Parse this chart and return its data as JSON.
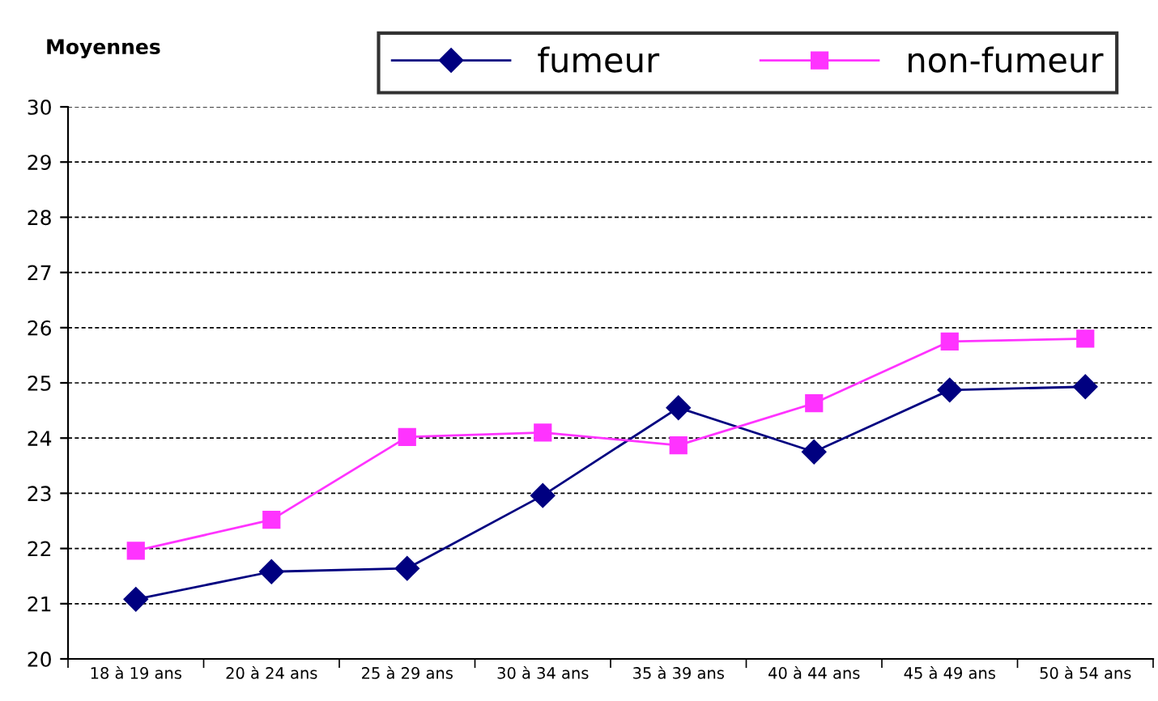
{
  "chart_data": {
    "type": "line",
    "ylabel": "Moyennes",
    "categories": [
      "18 à 19 ans",
      "20 à 24 ans",
      "25 à 29 ans",
      "30 à 34 ans",
      "35 à 39 ans",
      "40 à 44 ans",
      "45 à 49 ans",
      "50 à 54 ans"
    ],
    "series": [
      {
        "name": "fumeur",
        "color": "#000080",
        "marker": "diamond",
        "values": [
          21.08,
          21.58,
          21.64,
          22.96,
          24.55,
          23.75,
          24.87,
          24.93
        ]
      },
      {
        "name": "non-fumeur",
        "color": "#ff33ff",
        "marker": "square",
        "values": [
          21.96,
          22.52,
          24.02,
          24.1,
          23.87,
          24.63,
          25.75,
          25.8
        ]
      }
    ],
    "ylim": [
      20,
      30
    ],
    "yticks": [
      20,
      21,
      22,
      23,
      24,
      25,
      26,
      27,
      28,
      29,
      30
    ],
    "grid": "y",
    "legend": "top right",
    "line_style": "solid"
  }
}
